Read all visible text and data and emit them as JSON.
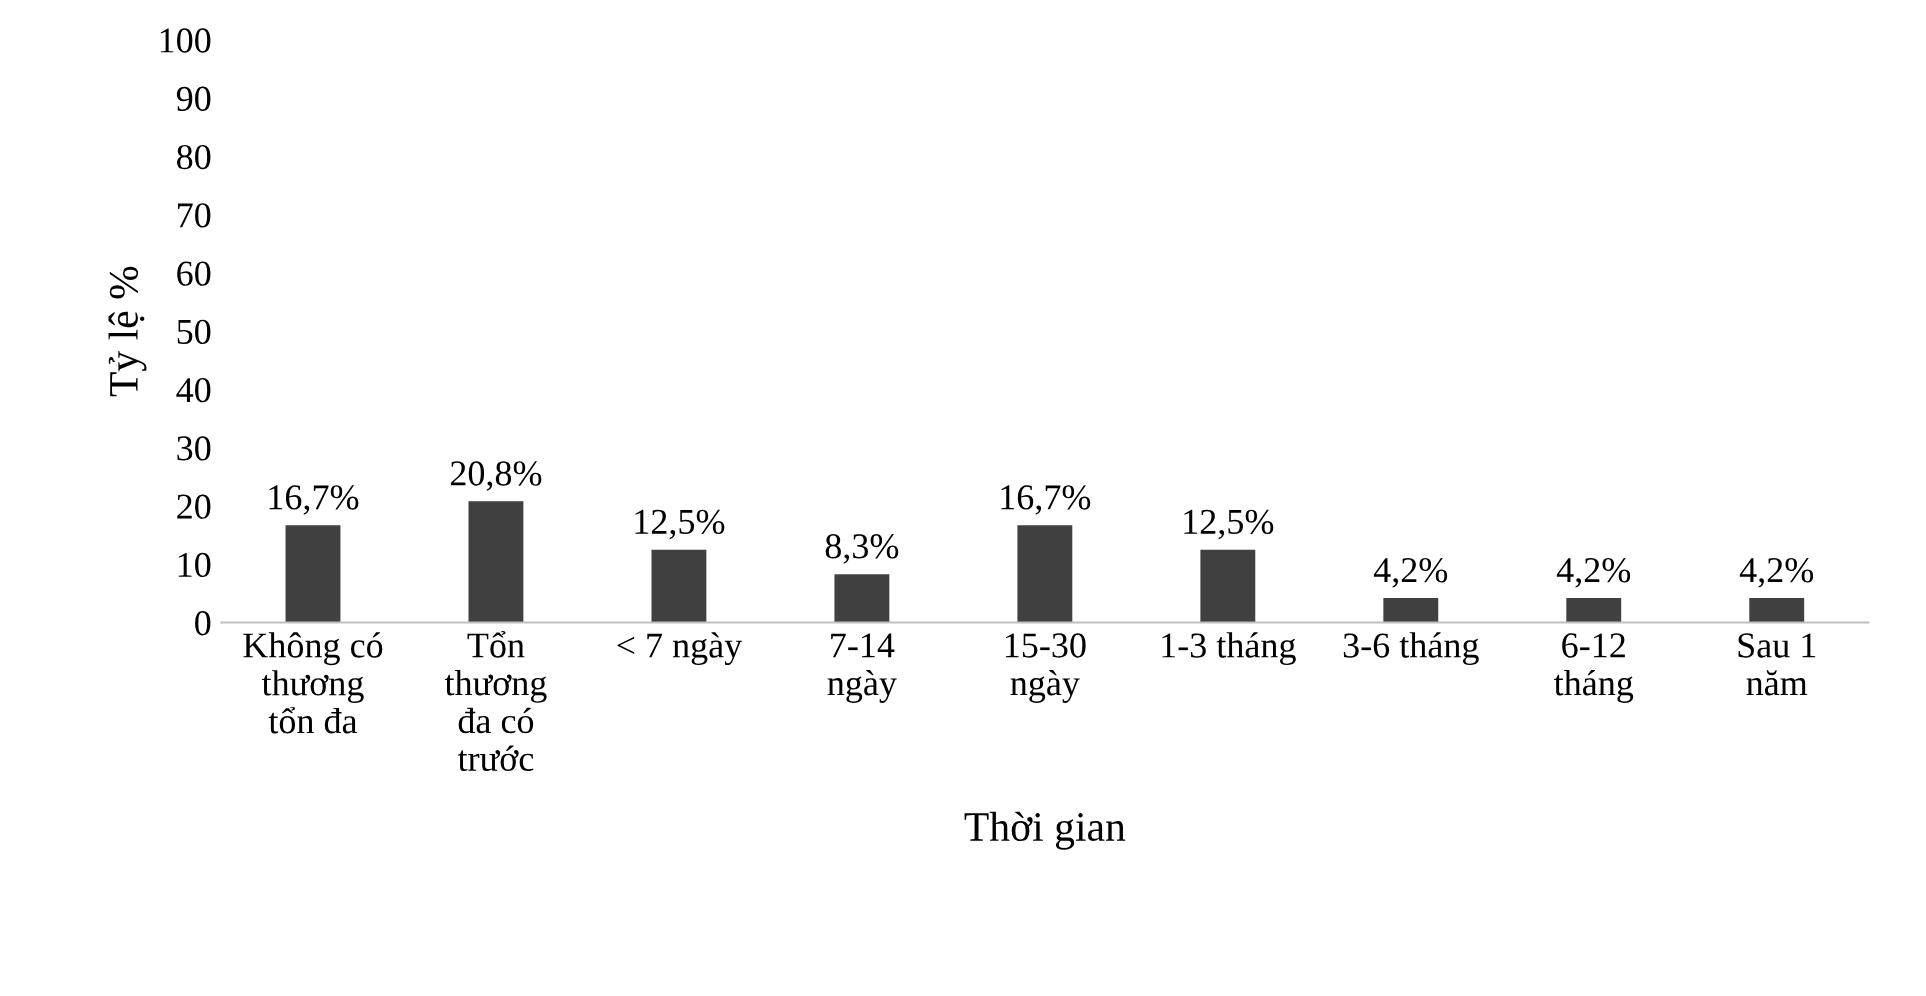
{
  "chart_data": {
    "type": "bar",
    "xlabel": "Thời gian",
    "ylabel": "Tỷ lệ %",
    "categories": [
      "Không có\nthương\ntổn đa",
      "Tổn\nthương\nđa có\ntrước",
      "< 7 ngày",
      "7-14\nngày",
      "15-30\nngày",
      "1-3 tháng",
      "3-6 tháng",
      "6-12\ntháng",
      "Sau 1\nnăm"
    ],
    "values": [
      16.7,
      20.8,
      12.5,
      8.3,
      16.7,
      12.5,
      4.2,
      4.2,
      4.2
    ],
    "value_labels": [
      "16,7%",
      "20,8%",
      "12,5%",
      "8,3%",
      "16,7%",
      "12,5%",
      "4,2%",
      "4,2%",
      "4,2%"
    ],
    "color": "#404040",
    "ylim": [
      0,
      100
    ],
    "yticks": [
      0,
      10,
      20,
      30,
      40,
      50,
      60,
      70,
      80,
      90,
      100
    ],
    "grid": false,
    "legend": false
  }
}
